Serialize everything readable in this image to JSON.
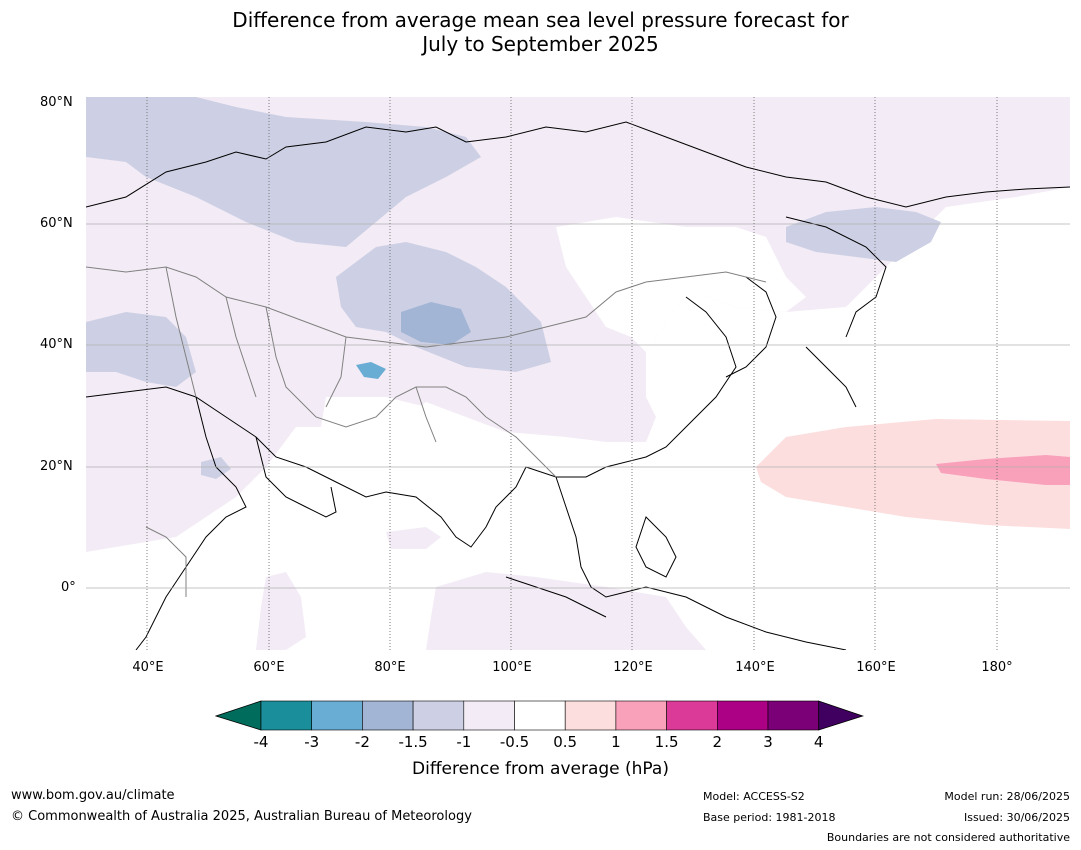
{
  "title": {
    "line1": "Difference from average mean sea level pressure forecast for",
    "line2": "July to September 2025"
  },
  "map": {
    "lat_labels": [
      "80°N",
      "60°N",
      "40°N",
      "20°N",
      "0°"
    ],
    "lon_labels": [
      "40°E",
      "60°E",
      "80°E",
      "100°E",
      "120°E",
      "140°E",
      "160°E",
      "180°"
    ]
  },
  "colorbar": {
    "ticks": [
      "-4",
      "-3",
      "-2",
      "-1.5",
      "-1",
      "-0.5",
      "0.5",
      "1",
      "1.5",
      "2",
      "3",
      "4"
    ],
    "colors": [
      "#1a8f9b",
      "#6aadd4",
      "#a3b5d5",
      "#cdd0e4",
      "#f3ebf5",
      "#ffffff",
      "#fddede",
      "#f9a0bb",
      "#dc3a98",
      "#ad0185",
      "#7b0077"
    ],
    "extend_low_color": "#006c5c",
    "extend_high_color": "#3f0060",
    "label": "Difference from average (hPa)"
  },
  "footer": {
    "website": "www.bom.gov.au/climate",
    "copyright": "© Commonwealth of Australia 2025, Australian Bureau of Meteorology",
    "model": "Model: ACCESS-S2",
    "base_period": "Base period: 1981-2018",
    "model_run": "Model run: 28/06/2025",
    "issued": "Issued: 30/06/2025",
    "disclaimer": "Boundaries are not considered authoritative"
  }
}
